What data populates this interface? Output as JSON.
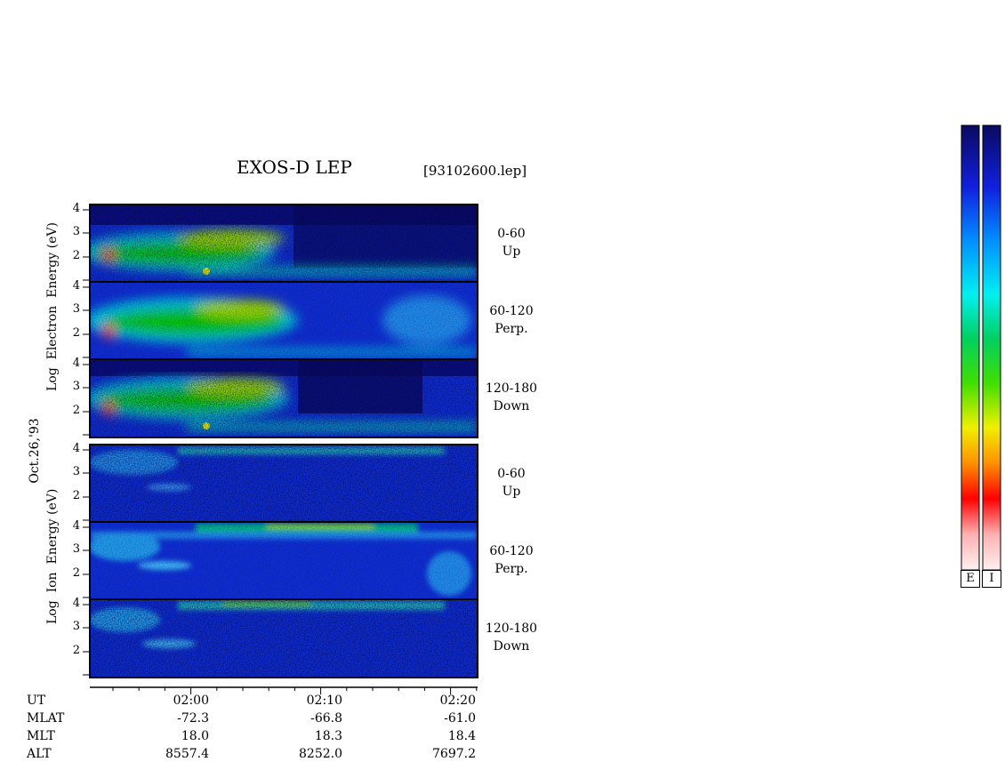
{
  "header": {
    "title": "EXOS-D LEP",
    "filename": "[93102600.lep]"
  },
  "date_label": "Oct.26,'93",
  "electron_ylabel": [
    "Log",
    "Electron",
    "Energy",
    "(eV)"
  ],
  "ion_ylabel": [
    "Log",
    "Ion",
    "Energy",
    "(eV)"
  ],
  "panels": [
    {
      "species": "electron",
      "angle": "0-60",
      "direction": "Up"
    },
    {
      "species": "electron",
      "angle": "60-120",
      "direction": "Perp."
    },
    {
      "species": "electron",
      "angle": "120-180",
      "direction": "Down"
    },
    {
      "species": "ion",
      "angle": "0-60",
      "direction": "Up"
    },
    {
      "species": "ion",
      "angle": "60-120",
      "direction": "Perp."
    },
    {
      "species": "ion",
      "angle": "120-180",
      "direction": "Down"
    }
  ],
  "ytick_labels": [
    "4",
    "3",
    "2"
  ],
  "ephemeris": {
    "row_labels": [
      "UT",
      "MLAT",
      "MLT",
      "ALT"
    ],
    "columns": [
      {
        "UT": "02:00",
        "MLAT": "-72.3",
        "MLT": "18.0",
        "ALT": "8557.4"
      },
      {
        "UT": "02:10",
        "MLAT": "-66.8",
        "MLT": "18.3",
        "ALT": "8252.0"
      },
      {
        "UT": "02:20",
        "MLAT": "-61.0",
        "MLT": "18.4",
        "ALT": "7697.2"
      }
    ]
  },
  "colorbars": [
    {
      "label": "E"
    },
    {
      "label": "I"
    }
  ],
  "chart_data": {
    "type": "heatmap",
    "title": "EXOS-D LEP",
    "x_axis": {
      "label": "UT",
      "range": [
        "01:53",
        "02:21"
      ],
      "major_ticks": [
        "02:00",
        "02:10",
        "02:20"
      ]
    },
    "y_axis": {
      "label": "Log Energy (eV)",
      "scale": "log10",
      "range": [
        1,
        4.1
      ],
      "ticks": [
        2,
        3,
        4
      ]
    },
    "colormap": [
      "#0a0a70",
      "#1020d0",
      "#0090ff",
      "#00f0f0",
      "#00d000",
      "#f0f000",
      "#ff8000",
      "#ff0000",
      "#ffd0d0"
    ],
    "series": [
      {
        "name": "Electron 0-60 Up"
      },
      {
        "name": "Electron 60-120 Perp."
      },
      {
        "name": "Electron 120-180 Down"
      },
      {
        "name": "Ion 0-60 Up"
      },
      {
        "name": "Ion 60-120 Perp."
      },
      {
        "name": "Ion 120-180 Down"
      }
    ],
    "features": {
      "electron_band": {
        "description_time": [
          "01:53",
          "02:07"
        ],
        "energy_log": [
          2.3,
          3.2
        ]
      },
      "electron_hot_spot_time": "01:54",
      "ion_band_energy_log": 4.0
    }
  }
}
